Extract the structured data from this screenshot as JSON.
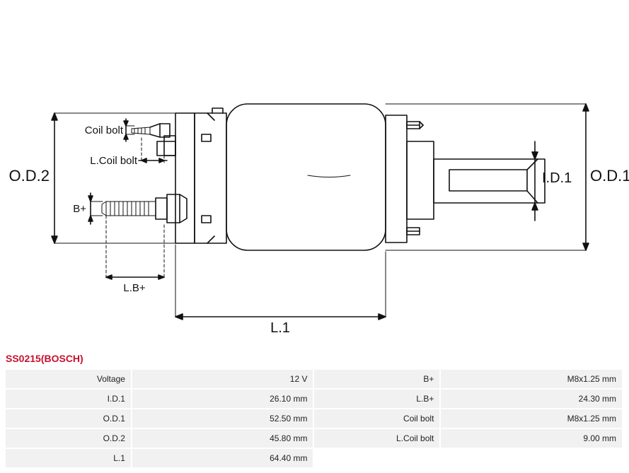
{
  "part_title": "SS0215(BOSCH)",
  "diagram": {
    "type": "engineering-drawing",
    "stroke_color": "#111111",
    "stroke_width": 1.6,
    "thin_stroke_width": 1,
    "dash_pattern": "4 3",
    "font_size_label": 15,
    "font_size_big": 22,
    "labels": {
      "od2": "O.D.2",
      "od1": "O.D.1",
      "id1": "I.D.1",
      "l1": "L.1",
      "coil_bolt": "Coil bolt",
      "l_coil_bolt": "L.Coil bolt",
      "b_plus": "B+",
      "lb_plus": "L.B+"
    }
  },
  "specs": {
    "rows": [
      {
        "k1": "Voltage",
        "v1": "12 V",
        "k2": "B+",
        "v2": "M8x1.25 mm"
      },
      {
        "k1": "I.D.1",
        "v1": "26.10 mm",
        "k2": "L.B+",
        "v2": "24.30 mm"
      },
      {
        "k1": "O.D.1",
        "v1": "52.50 mm",
        "k2": "Coil bolt",
        "v2": "M8x1.25 mm"
      },
      {
        "k1": "O.D.2",
        "v1": "45.80 mm",
        "k2": "L.Coil bolt",
        "v2": "9.00 mm"
      },
      {
        "k1": "L.1",
        "v1": "64.40 mm",
        "k2": "",
        "v2": ""
      }
    ]
  }
}
